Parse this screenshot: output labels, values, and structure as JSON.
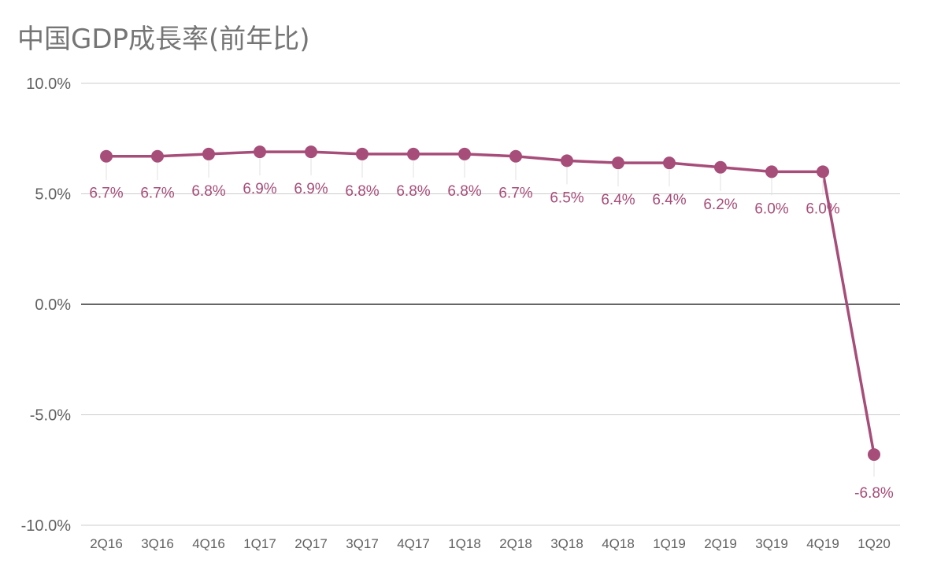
{
  "chart_data": {
    "type": "line",
    "title": "中国GDP成長率(前年比)",
    "xlabel": "",
    "ylabel": "",
    "categories": [
      "2Q16",
      "3Q16",
      "4Q16",
      "1Q17",
      "2Q17",
      "3Q17",
      "4Q17",
      "1Q18",
      "2Q18",
      "3Q18",
      "4Q18",
      "1Q19",
      "2Q19",
      "3Q19",
      "4Q19",
      "1Q20"
    ],
    "series": [
      {
        "values": [
          6.7,
          6.7,
          6.8,
          6.9,
          6.9,
          6.8,
          6.8,
          6.8,
          6.7,
          6.5,
          6.4,
          6.4,
          6.2,
          6.0,
          6.0,
          -6.8
        ],
        "data_labels": [
          "6.7%",
          "6.7%",
          "6.8%",
          "6.9%",
          "6.9%",
          "6.8%",
          "6.8%",
          "6.8%",
          "6.7%",
          "6.5%",
          "6.4%",
          "6.4%",
          "6.2%",
          "6.0%",
          "6.0%",
          "-6.8%"
        ]
      }
    ],
    "ylim": [
      -10,
      10
    ],
    "yticks": [
      10,
      5,
      0,
      -5,
      -10
    ],
    "ytick_labels": [
      "10.0%",
      "5.0%",
      "0.0%",
      "-5.0%",
      "-10.0%"
    ],
    "grid": true,
    "colors": {
      "line": "#A64D79",
      "grid": "#cccccc",
      "zero_line": "#333333",
      "text": "#616161",
      "title": "#757575"
    }
  }
}
